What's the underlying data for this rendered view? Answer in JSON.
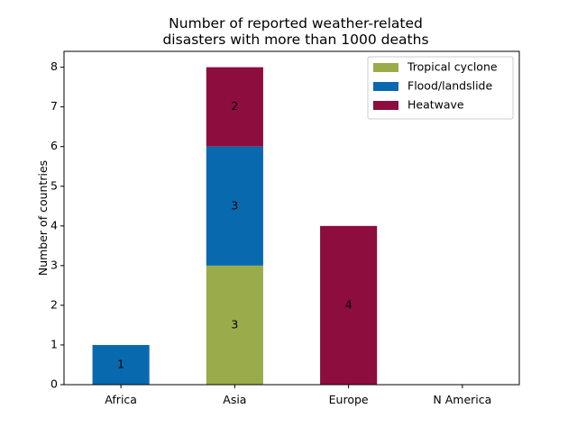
{
  "chart_data": {
    "type": "bar",
    "stacked": true,
    "title_lines": [
      "Number of reported weather-related",
      "disasters with more than 1000 deaths"
    ],
    "xlabel": "",
    "ylabel": "Number of countries",
    "categories": [
      "Africa",
      "Asia",
      "Europe",
      "N America"
    ],
    "ylim": [
      0,
      8.4
    ],
    "yticks": [
      0,
      1,
      2,
      3,
      4,
      5,
      6,
      7,
      8
    ],
    "grid": false,
    "legend_position": "top-right",
    "series": [
      {
        "name": "Tropical cyclone",
        "color": "#9aab4c",
        "values": [
          0,
          3,
          0,
          0
        ]
      },
      {
        "name": "Flood/landslide",
        "color": "#0969ae",
        "values": [
          1,
          3,
          0,
          0
        ]
      },
      {
        "name": "Heatwave",
        "color": "#8d0d3f",
        "values": [
          0,
          2,
          4,
          0
        ]
      }
    ]
  }
}
